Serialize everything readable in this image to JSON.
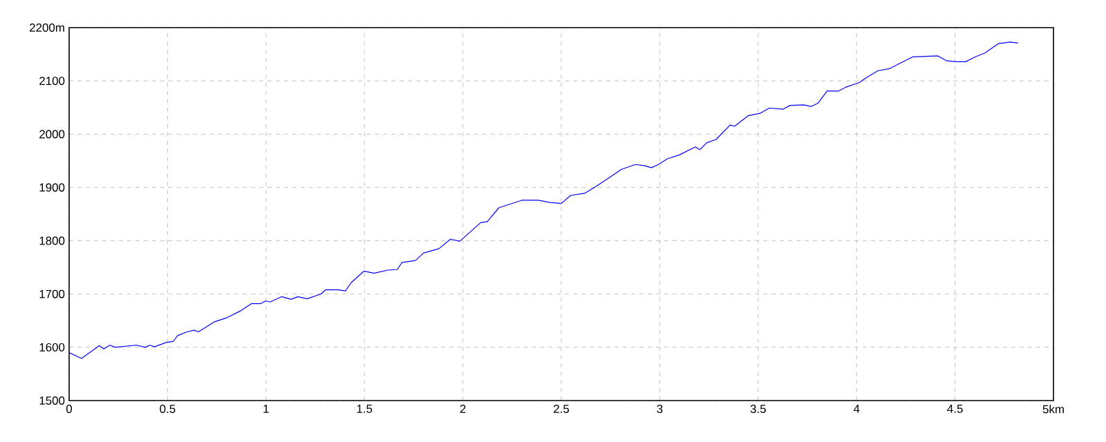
{
  "chart_data": {
    "type": "line",
    "xlim": [
      0,
      5
    ],
    "ylim": [
      1500,
      2200
    ],
    "xticks": [
      0,
      0.5,
      1,
      1.5,
      2,
      2.5,
      3,
      3.5,
      4,
      4.5,
      {
        "value": 5,
        "label": "5km"
      }
    ],
    "yticks": [
      1500,
      1600,
      1700,
      1800,
      1900,
      2000,
      2100,
      {
        "value": 2200,
        "label": "2200m"
      }
    ],
    "grid": true,
    "series": [
      {
        "color": "#0000ff",
        "x": [
          0,
          0.063,
          0.153,
          0.176,
          0.207,
          0.235,
          0.34,
          0.387,
          0.41,
          0.434,
          0.493,
          0.528,
          0.552,
          0.599,
          0.634,
          0.657,
          0.739,
          0.798,
          0.869,
          0.927,
          0.974,
          0.998,
          1.021,
          1.08,
          1.127,
          1.162,
          1.209,
          1.279,
          1.303,
          1.362,
          1.404,
          1.432,
          1.498,
          1.549,
          1.62,
          1.667,
          1.69,
          1.76,
          1.8,
          1.878,
          1.937,
          1.984,
          2.09,
          2.124,
          2.183,
          2.3,
          2.383,
          2.441,
          2.5,
          2.547,
          2.618,
          2.676,
          2.746,
          2.805,
          2.876,
          2.923,
          2.958,
          2.993,
          3.04,
          3.099,
          3.181,
          3.204,
          3.239,
          3.286,
          3.357,
          3.38,
          3.451,
          3.509,
          3.556,
          3.627,
          3.662,
          3.732,
          3.768,
          3.803,
          3.85,
          3.908,
          3.944,
          4.014,
          4.049,
          4.108,
          4.167,
          4.214,
          4.284,
          4.413,
          4.455,
          4.507,
          4.554,
          4.601,
          4.65,
          4.72,
          4.78,
          4.82
        ],
        "values": [
          1590,
          1579,
          1603,
          1597,
          1604,
          1600,
          1604,
          1600,
          1604,
          1601,
          1609,
          1611,
          1622,
          1629,
          1632,
          1629,
          1648,
          1655,
          1668,
          1682,
          1682,
          1687,
          1685,
          1695,
          1690,
          1695,
          1691,
          1700,
          1708,
          1708,
          1706,
          1721,
          1743,
          1739,
          1745,
          1746,
          1759,
          1763,
          1777,
          1785,
          1803,
          1799,
          1834,
          1836,
          1862,
          1876,
          1876,
          1872,
          1870,
          1885,
          1889,
          1902,
          1919,
          1934,
          1943,
          1941,
          1937,
          1943,
          1954,
          1961,
          1976,
          1971,
          1984,
          1990,
          2017,
          2015,
          2035,
          2039,
          2049,
          2047,
          2054,
          2055,
          2052,
          2058,
          2081,
          2081,
          2088,
          2097,
          2106,
          2119,
          2123,
          2132,
          2145,
          2147,
          2138,
          2136,
          2136,
          2145,
          2152,
          2170,
          2173,
          2171
        ]
      }
    ]
  }
}
